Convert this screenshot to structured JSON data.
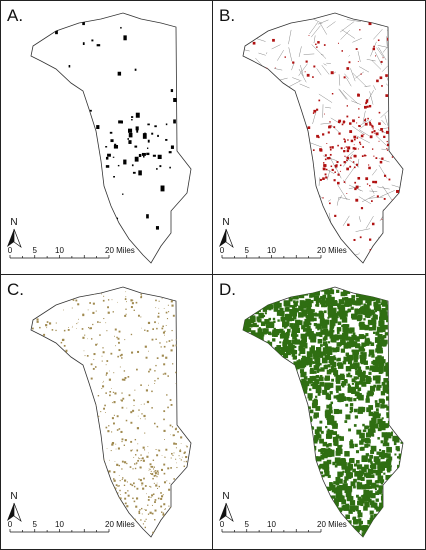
{
  "panels": [
    {
      "id": "a",
      "label": "A.",
      "color": "#000000",
      "layer": "black-blobs"
    },
    {
      "id": "b",
      "label": "B.",
      "color": "#b01010",
      "layer": "red-network"
    },
    {
      "id": "c",
      "label": "C.",
      "color": "#a08a50",
      "layer": "tan-speckle"
    },
    {
      "id": "d",
      "label": "D.",
      "color": "#2f6e12",
      "layer": "green-cover"
    }
  ],
  "north_arrow": {
    "letter": "N",
    "icon": "north-arrow-icon"
  },
  "scale_bar": {
    "ticks": [
      "0",
      "5",
      "10",
      "20 Miles"
    ]
  },
  "outline_color": "#333333"
}
